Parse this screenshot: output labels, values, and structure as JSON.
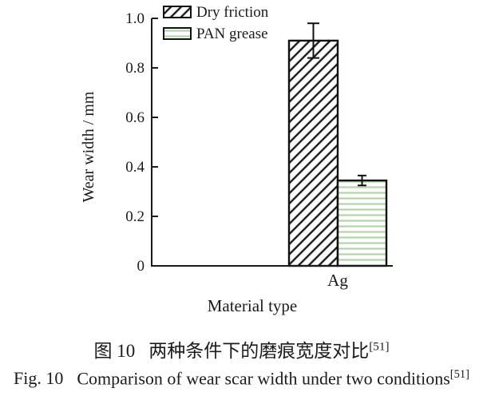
{
  "figure": {
    "caption_zh": {
      "label": "图 10",
      "text": "两种条件下的磨痕宽度对比",
      "ref": "[51]"
    },
    "caption_en": {
      "label": "Fig. 10",
      "text": "Comparison of wear scar width under two conditions",
      "ref": "[51]"
    }
  },
  "chart_data": {
    "type": "bar",
    "title": "",
    "xlabel": "Material type",
    "ylabel": "Wear width / mm",
    "categories": [
      "Ag"
    ],
    "series": [
      {
        "name": "Dry friction",
        "values": [
          0.91
        ],
        "errors": [
          0.07
        ],
        "pattern": "diagonal-hatch",
        "color": "#1a1a1a"
      },
      {
        "name": "PAN grease",
        "values": [
          0.345
        ],
        "errors": [
          0.02
        ],
        "pattern": "horizontal-lines",
        "color": "#b4d3aa"
      }
    ],
    "ylim": [
      0,
      1.0
    ],
    "yticks": [
      0,
      0.2,
      0.4,
      0.6,
      0.8,
      1.0
    ],
    "grid": false,
    "legend_position": "top-left",
    "axis_color": "#1a1a1a"
  }
}
